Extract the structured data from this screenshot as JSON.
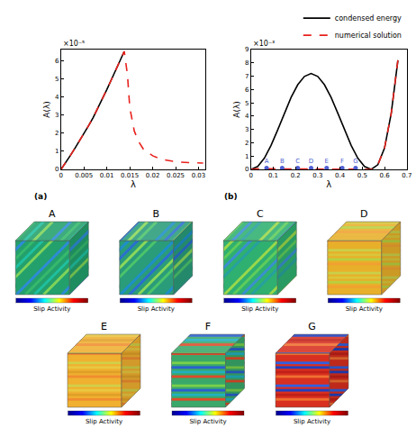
{
  "chart_data": [
    {
      "type": "line",
      "panel": "(a)",
      "x_label": "λ",
      "y_label": "A(λ)",
      "annotations": [
        "×10⁻⁵"
      ],
      "xlim": [
        0,
        0.0315
      ],
      "xticks": [
        0,
        0.005,
        0.01,
        0.015,
        0.02,
        0.025,
        0.03
      ],
      "ylim": [
        0,
        6.6e-05
      ],
      "yticks": [
        0,
        {
          "value": 1e-05,
          "label": "1"
        },
        {
          "value": 2e-05,
          "label": "2"
        },
        {
          "value": 3e-05,
          "label": "3"
        },
        {
          "value": 4e-05,
          "label": "4"
        },
        {
          "value": 5e-05,
          "label": "5"
        },
        {
          "value": 6e-05,
          "label": "6"
        }
      ],
      "grid": false,
      "series": [
        {
          "name": "condensed energy",
          "color": "#000000",
          "line_style": "solid",
          "x": [
            0,
            0.001,
            0.002,
            0.003,
            0.004,
            0.005,
            0.006,
            0.007,
            0.008,
            0.009,
            0.01,
            0.011,
            0.012,
            0.013,
            0.0138
          ],
          "values": [
            0,
            3.5e-06,
            7.5e-06,
            1.15e-05,
            1.55e-05,
            1.95e-05,
            2.4e-05,
            2.85e-05,
            3.35e-05,
            3.85e-05,
            4.4e-05,
            4.95e-05,
            5.5e-05,
            6.05e-05,
            6.5e-05
          ]
        },
        {
          "name": "numerical solution",
          "color": "#e8211c",
          "line_style": "dashed",
          "x": [
            0,
            0.001,
            0.002,
            0.003,
            0.004,
            0.005,
            0.006,
            0.007,
            0.008,
            0.009,
            0.01,
            0.011,
            0.012,
            0.013,
            0.0138,
            0.0145,
            0.015,
            0.016,
            0.017,
            0.018,
            0.02,
            0.022,
            0.025,
            0.028,
            0.031
          ],
          "values": [
            0,
            3.5e-06,
            7.5e-06,
            1.15e-05,
            1.55e-05,
            1.95e-05,
            2.4e-05,
            2.85e-05,
            3.35e-05,
            3.85e-05,
            4.4e-05,
            4.95e-05,
            5.5e-05,
            6.05e-05,
            6.5e-05,
            5.2e-05,
            3.4e-05,
            2.1e-05,
            1.5e-05,
            1.1e-05,
            7.5e-06,
            5.5e-06,
            4.2e-06,
            3.7e-06,
            3.5e-06
          ]
        }
      ]
    },
    {
      "type": "line",
      "panel": "(b)",
      "x_label": "λ",
      "y_label": "A(λ)",
      "annotations": [
        "×10⁻³"
      ],
      "xlim": [
        0,
        0.7
      ],
      "xticks": [
        0,
        0.1,
        0.2,
        0.3,
        0.4,
        0.5,
        0.6,
        0.7
      ],
      "ylim": [
        0,
        0.009
      ],
      "yticks": [
        0,
        {
          "value": 0.001,
          "label": "1"
        },
        {
          "value": 0.002,
          "label": "2"
        },
        {
          "value": 0.003,
          "label": "3"
        },
        {
          "value": 0.004,
          "label": "4"
        },
        {
          "value": 0.005,
          "label": "5"
        },
        {
          "value": 0.006,
          "label": "6"
        },
        {
          "value": 0.007,
          "label": "7"
        },
        {
          "value": 0.008,
          "label": "8"
        },
        {
          "value": 0.009,
          "label": "9"
        }
      ],
      "grid": false,
      "legend": "top right",
      "series": [
        {
          "name": "condensed energy",
          "color": "#000000",
          "line_style": "solid",
          "x": [
            0,
            0.03,
            0.06,
            0.09,
            0.12,
            0.15,
            0.18,
            0.21,
            0.24,
            0.27,
            0.3,
            0.33,
            0.36,
            0.39,
            0.42,
            0.45,
            0.48,
            0.51,
            0.54,
            0.57,
            0.6,
            0.63,
            0.66
          ],
          "values": [
            0,
            0.000217,
            0.00084,
            0.0018,
            0.00297,
            0.00422,
            0.0054,
            0.00636,
            0.00698,
            0.0072,
            0.00698,
            0.00636,
            0.0054,
            0.00422,
            0.00297,
            0.0018,
            0.00084,
            0.000217,
            0,
            0.00035,
            0.0016,
            0.0042,
            0.0082
          ]
        },
        {
          "name": "numerical solution",
          "color": "#e8211c",
          "line_style": "dashed",
          "x": [
            0,
            0.03,
            0.1,
            0.2,
            0.3,
            0.4,
            0.5,
            0.54,
            0.57,
            0.6,
            0.63,
            0.66
          ],
          "values": [
            0,
            4e-05,
            4e-05,
            4e-05,
            4e-05,
            4e-05,
            4e-05,
            0,
            0.00035,
            0.0016,
            0.0042,
            0.0082
          ]
        }
      ],
      "points": {
        "labels": [
          "A",
          "B",
          "C",
          "D",
          "E",
          "F",
          "G"
        ],
        "color": "#4f5fd0",
        "marker": "circle",
        "x": [
          0.07,
          0.14,
          0.21,
          0.27,
          0.34,
          0.41,
          0.47
        ],
        "values": [
          0.0001,
          0.0001,
          0.0001,
          0.0001,
          0.0001,
          0.0001,
          0.0001
        ]
      }
    }
  ],
  "panels": [
    {
      "label": "A",
      "colorbar_title": "Slip Activity"
    },
    {
      "label": "B",
      "colorbar_title": "Slip Activity"
    },
    {
      "label": "C",
      "colorbar_title": "Slip Activity"
    },
    {
      "label": "D",
      "colorbar_title": "Slip Activity"
    },
    {
      "label": "E",
      "colorbar_title": "Slip Activity"
    },
    {
      "label": "F",
      "colorbar_title": "Slip Activity"
    },
    {
      "label": "G",
      "colorbar_title": "Slip Activity"
    }
  ]
}
